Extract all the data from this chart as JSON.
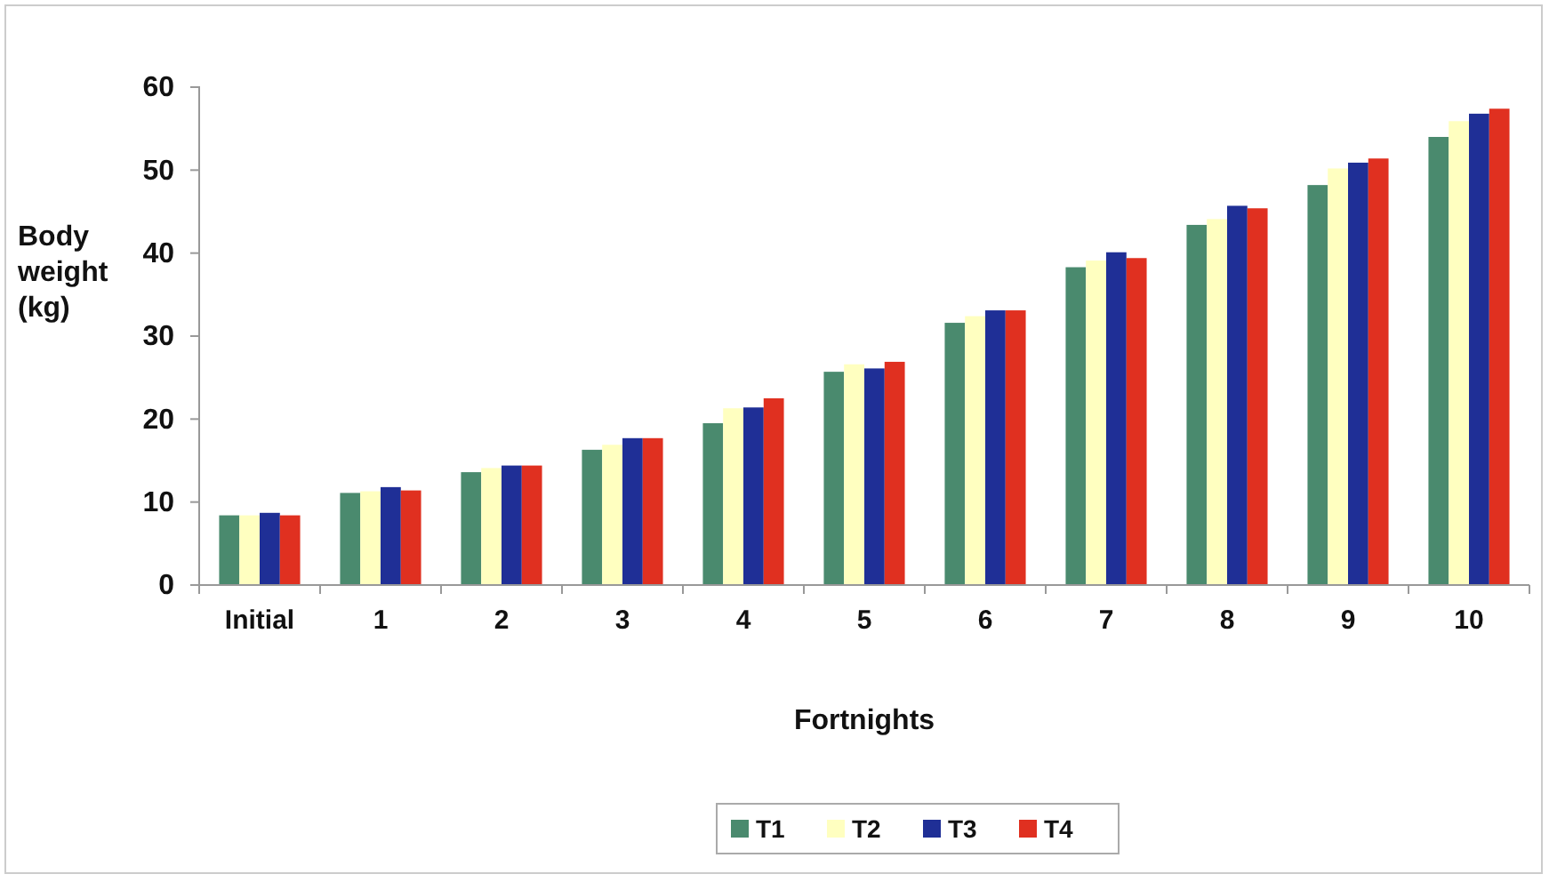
{
  "chart_data": {
    "type": "bar",
    "xlabel": "Fortnights",
    "ylabel": "Body weight (kg)",
    "categories": [
      "Initial",
      "1",
      "2",
      "3",
      "4",
      "5",
      "6",
      "7",
      "8",
      "9",
      "10"
    ],
    "series": [
      {
        "name": "T1",
        "color": "#4a8a6e",
        "values": [
          8.4,
          11.1,
          13.6,
          16.3,
          19.5,
          25.7,
          31.6,
          38.3,
          43.4,
          48.2,
          54.0
        ]
      },
      {
        "name": "T2",
        "color": "#ffffc0",
        "values": [
          8.4,
          11.3,
          14.1,
          16.9,
          21.3,
          26.6,
          32.4,
          39.1,
          44.1,
          50.2,
          55.9
        ]
      },
      {
        "name": "T3",
        "color": "#1f2f96",
        "values": [
          8.7,
          11.8,
          14.4,
          17.7,
          21.4,
          26.1,
          33.1,
          40.1,
          45.7,
          50.9,
          56.8
        ]
      },
      {
        "name": "T4",
        "color": "#e03020",
        "values": [
          8.4,
          11.4,
          14.4,
          17.7,
          22.5,
          26.9,
          33.1,
          39.4,
          45.4,
          51.4,
          57.4
        ]
      }
    ],
    "ylim": [
      0,
      60
    ],
    "yticks": [
      0,
      10,
      20,
      30,
      40,
      50,
      60
    ],
    "grid": false,
    "legend": "bottom"
  }
}
